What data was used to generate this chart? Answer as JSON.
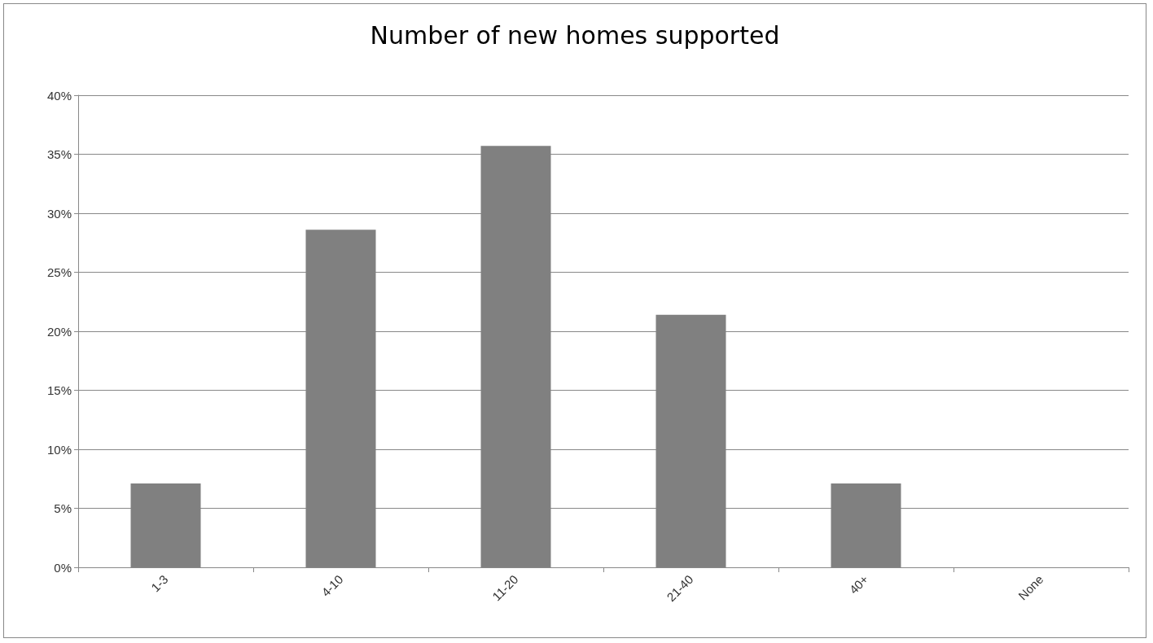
{
  "chart_data": {
    "type": "bar",
    "title": "Number of new homes supported",
    "categories": [
      "1-3",
      "4-10",
      "11-20",
      "21-40",
      "40+",
      "None"
    ],
    "values": [
      7.1,
      28.6,
      35.7,
      21.4,
      7.1,
      0
    ],
    "color": "#808080",
    "ylim": [
      0,
      40
    ],
    "yticks": [
      {
        "value": 0,
        "label": "0%"
      },
      {
        "value": 5,
        "label": "5%"
      },
      {
        "value": 10,
        "label": "10%"
      },
      {
        "value": 15,
        "label": "15%"
      },
      {
        "value": 20,
        "label": "20%"
      },
      {
        "value": 25,
        "label": "25%"
      },
      {
        "value": 30,
        "label": "30%"
      },
      {
        "value": 35,
        "label": "35%"
      },
      {
        "value": 40,
        "label": "40%"
      }
    ],
    "grid": "y"
  }
}
